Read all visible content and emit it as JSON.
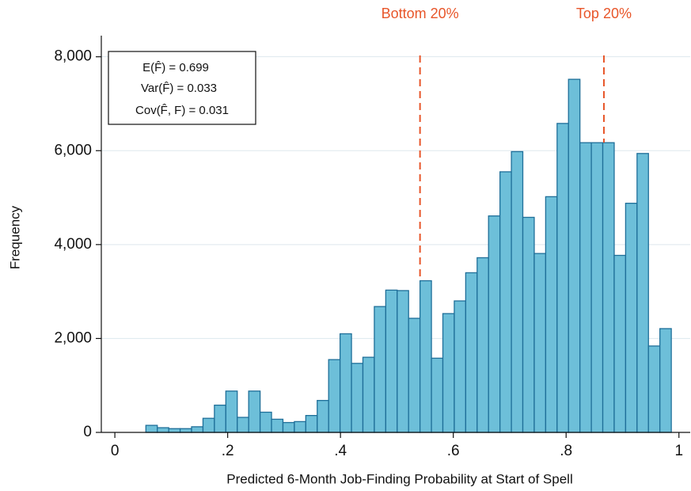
{
  "chart_data": {
    "type": "histogram",
    "x_label": "Predicted 6-Month Job-Finding Probability at Start of Spell",
    "y_label": "Frequency",
    "bins": [
      0.055,
      0.07525,
      0.0955,
      0.11575,
      0.136,
      0.15625,
      0.1765,
      0.19675,
      0.217,
      0.23725,
      0.2575,
      0.27775,
      0.298,
      0.31825,
      0.3385,
      0.35875,
      0.379,
      0.39925,
      0.4195,
      0.43975,
      0.46,
      0.48025,
      0.5005,
      0.52075,
      0.541,
      0.56125,
      0.5815,
      0.60175,
      0.622,
      0.64225,
      0.6625,
      0.68275,
      0.703,
      0.72325,
      0.7435,
      0.76375,
      0.784,
      0.80425,
      0.8245,
      0.84475,
      0.865,
      0.88525,
      0.9055,
      0.92575,
      0.946,
      0.96625,
      0.9865
    ],
    "values": [
      150,
      100,
      80,
      80,
      120,
      300,
      580,
      880,
      320,
      880,
      430,
      280,
      210,
      230,
      360,
      680,
      1550,
      2100,
      1470,
      1600,
      2680,
      3030,
      3020,
      2430,
      3230,
      1580,
      2530,
      2800,
      3400,
      3720,
      4610,
      5550,
      5980,
      4580,
      3810,
      5020,
      6580,
      7520,
      6170,
      6170,
      6170,
      3770,
      4880,
      5940,
      1840,
      2210
    ],
    "color": "#6dbfd9",
    "edge_color": "#1f6f99",
    "xlim": [
      -0.024,
      1.02
    ],
    "ylim": [
      0,
      8450
    ],
    "xticks": [
      0,
      {
        "value": 0.2,
        "label": ".2"
      },
      {
        "value": 0.4,
        "label": ".4"
      },
      {
        "value": 0.6,
        "label": ".6"
      },
      {
        "value": 0.8,
        "label": ".8"
      },
      1
    ],
    "yticks": [
      0,
      {
        "value": 2000,
        "label": "2,000"
      },
      {
        "value": 4000,
        "label": "4,000"
      },
      {
        "value": 6000,
        "label": "6,000"
      },
      {
        "value": 8000,
        "label": "8,000"
      }
    ],
    "grid": true,
    "reference_lines": [
      {
        "value": 0.541,
        "label": "Bottom 20%",
        "color": "#e8562a"
      },
      {
        "value": 0.867,
        "label": "Top 20%",
        "color": "#e8562a"
      }
    ],
    "annotations": [
      "E(F̂) = 0.699",
      "Var(F̂) = 0.033",
      "Cov(F̂, F) = 0.031"
    ]
  }
}
